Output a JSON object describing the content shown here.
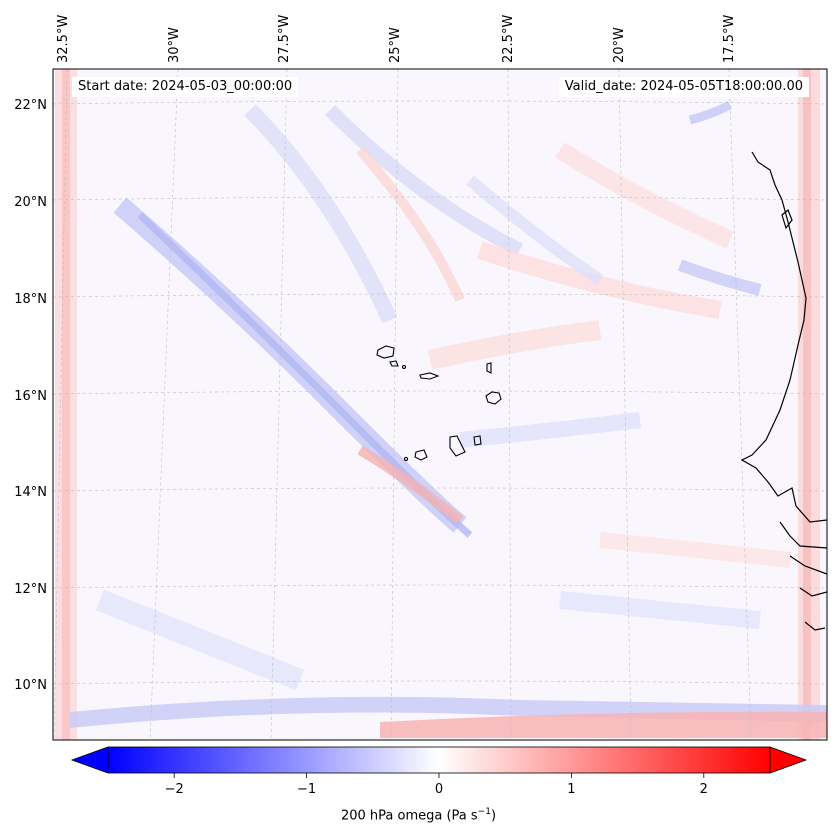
{
  "header": {
    "start_date": "Start date: 2024-05-03_00:00:00",
    "valid_date": "Valid_date: 2024-05-05T18:00:00.00"
  },
  "map": {
    "lon_labels": [
      "32.5°W",
      "30°W",
      "27.5°W",
      "25°W",
      "22.5°W",
      "20°W",
      "17.5°W"
    ],
    "lat_labels": [
      "22°N",
      "20°N",
      "18°N",
      "16°N",
      "14°N",
      "12°N",
      "10°N"
    ],
    "lon_range": [
      -32.5,
      -15.3
    ],
    "lat_range": [
      8.9,
      22.8
    ]
  },
  "colorbar": {
    "title_prefix": "200 hPa omega (Pa s",
    "title_exp": "−1",
    "title_suffix": ")",
    "tick_labels": [
      "−2",
      "−1",
      "0",
      "1",
      "2"
    ],
    "ticks": [
      -2,
      -1,
      0,
      1,
      2
    ],
    "range": [
      -2.5,
      2.5
    ],
    "low_color": "#0000ff",
    "mid_color": "#ffffff",
    "high_color": "#ff0000"
  }
}
